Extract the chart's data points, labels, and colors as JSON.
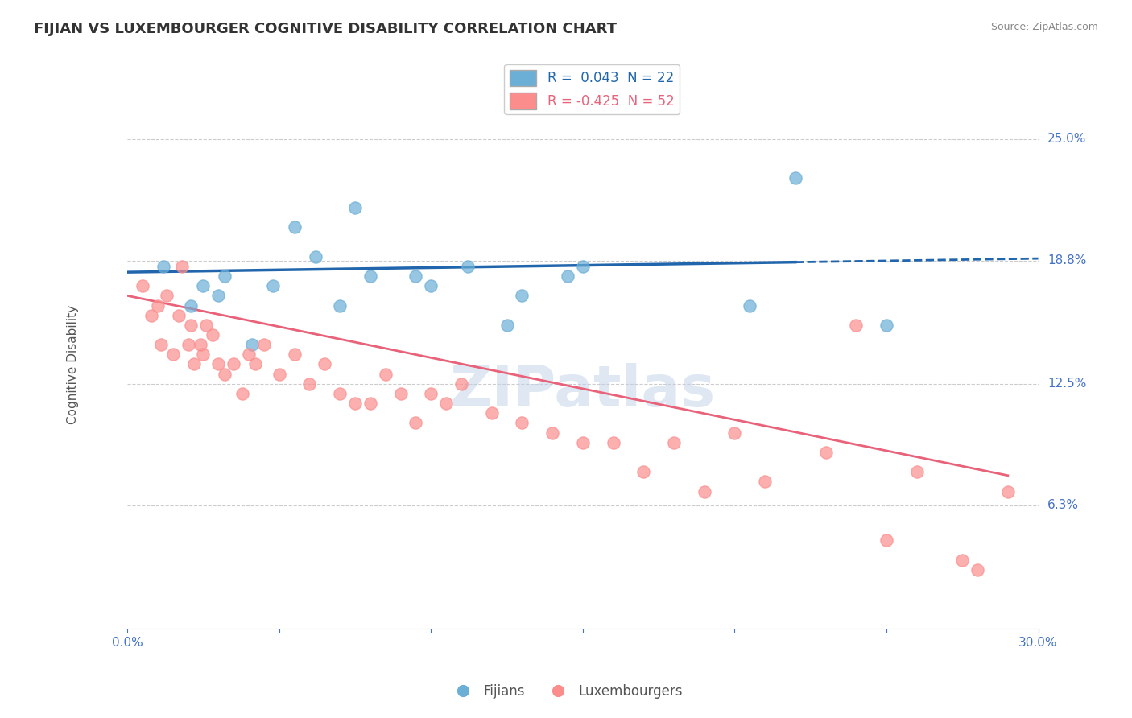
{
  "title": "FIJIAN VS LUXEMBOURGER COGNITIVE DISABILITY CORRELATION CHART",
  "source": "Source: ZipAtlas.com",
  "xlabel": "",
  "ylabel": "Cognitive Disability",
  "xlim": [
    0.0,
    30.0
  ],
  "ylim": [
    0.0,
    27.0
  ],
  "ytick_positions": [
    6.3,
    12.5,
    18.8,
    25.0
  ],
  "ytick_labels": [
    "6.3%",
    "12.5%",
    "18.8%",
    "25.0%"
  ],
  "xtick_positions": [
    0.0,
    5.0,
    10.0,
    15.0,
    20.0,
    25.0,
    30.0
  ],
  "xtick_labels": [
    "0.0%",
    "",
    "",
    "",
    "",
    "",
    "30.0%"
  ],
  "fijian_color": "#6baed6",
  "luxembourger_color": "#fc8d8d",
  "fijian_R": 0.043,
  "fijian_N": 22,
  "luxembourger_R": -0.425,
  "luxembourger_N": 52,
  "grid_color": "#cccccc",
  "background_color": "#ffffff",
  "watermark": "ZIPatlas",
  "fijian_scatter_x": [
    1.2,
    2.1,
    2.5,
    3.0,
    3.2,
    4.1,
    4.8,
    5.5,
    6.2,
    7.0,
    7.5,
    8.0,
    9.5,
    10.0,
    11.2,
    12.5,
    13.0,
    14.5,
    15.0,
    20.5,
    22.0,
    25.0
  ],
  "fijian_scatter_y": [
    18.5,
    16.5,
    17.5,
    17.0,
    18.0,
    14.5,
    17.5,
    20.5,
    19.0,
    16.5,
    21.5,
    18.0,
    18.0,
    17.5,
    18.5,
    15.5,
    17.0,
    18.0,
    18.5,
    16.5,
    23.0,
    15.5
  ],
  "luxembourger_scatter_x": [
    0.5,
    0.8,
    1.0,
    1.1,
    1.3,
    1.5,
    1.7,
    1.8,
    2.0,
    2.1,
    2.2,
    2.4,
    2.5,
    2.6,
    2.8,
    3.0,
    3.2,
    3.5,
    3.8,
    4.0,
    4.2,
    4.5,
    5.0,
    5.5,
    6.0,
    6.5,
    7.0,
    7.5,
    8.0,
    8.5,
    9.0,
    9.5,
    10.0,
    10.5,
    11.0,
    12.0,
    13.0,
    14.0,
    15.0,
    16.0,
    17.0,
    18.0,
    19.0,
    20.0,
    21.0,
    23.0,
    24.0,
    25.0,
    26.0,
    27.5,
    28.0,
    29.0
  ],
  "luxembourger_scatter_y": [
    17.5,
    16.0,
    16.5,
    14.5,
    17.0,
    14.0,
    16.0,
    18.5,
    14.5,
    15.5,
    13.5,
    14.5,
    14.0,
    15.5,
    15.0,
    13.5,
    13.0,
    13.5,
    12.0,
    14.0,
    13.5,
    14.5,
    13.0,
    14.0,
    12.5,
    13.5,
    12.0,
    11.5,
    11.5,
    13.0,
    12.0,
    10.5,
    12.0,
    11.5,
    12.5,
    11.0,
    10.5,
    10.0,
    9.5,
    9.5,
    8.0,
    9.5,
    7.0,
    10.0,
    7.5,
    9.0,
    15.5,
    4.5,
    8.0,
    3.5,
    3.0,
    7.0
  ],
  "fijian_line_color": "#2166ac",
  "luxembourger_line_color": "#e8627a",
  "fijian_line_x": [
    0.0,
    30.0
  ],
  "fijian_line_y_start": 18.2,
  "fijian_line_y_end": 18.9,
  "luxembourger_line_x": [
    0.0,
    30.0
  ],
  "luxembourger_line_y_start": 17.0,
  "luxembourger_line_y_end": 7.5,
  "solid_end_x_fijian": 22.0,
  "solid_end_x_luxembourger": 29.0,
  "title_color": "#333333",
  "axis_label_color": "#4472c4",
  "tick_color": "#4472c4"
}
